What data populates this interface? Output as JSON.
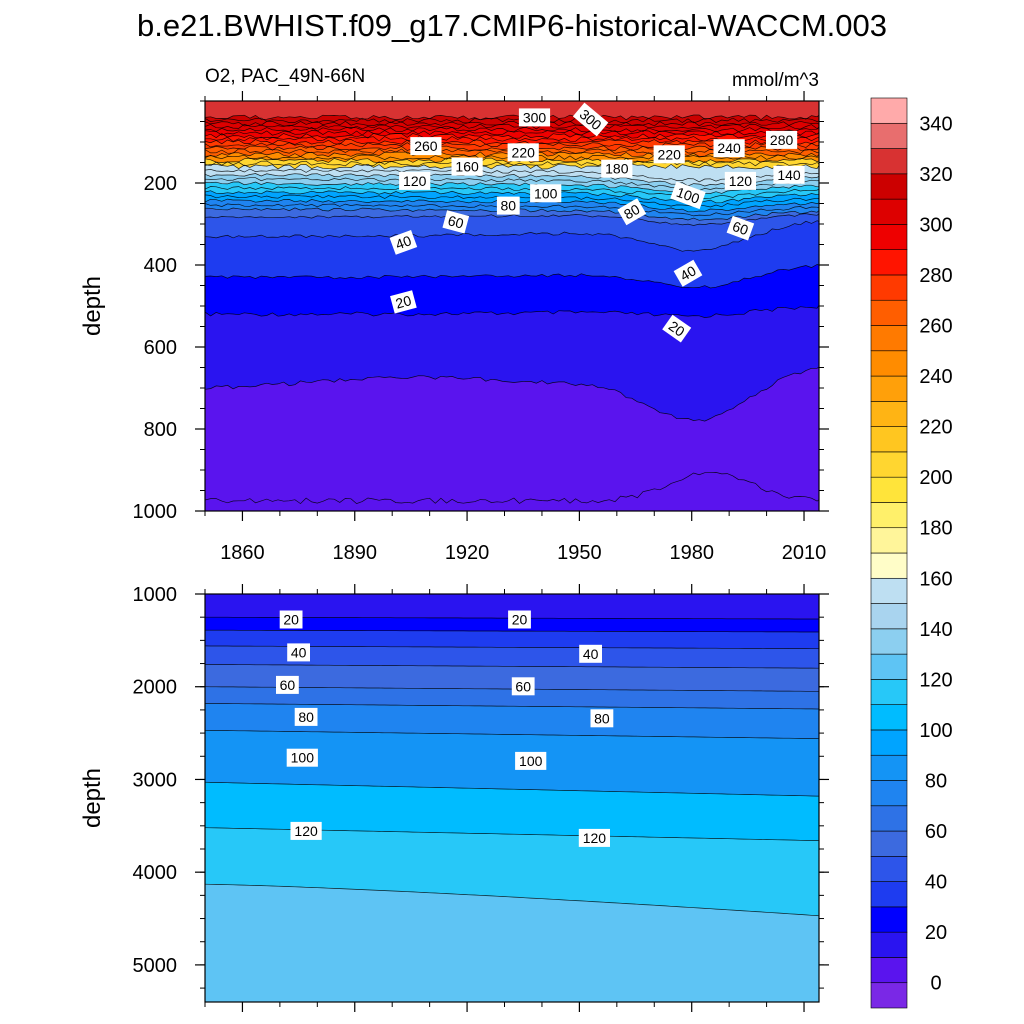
{
  "title": "b.e21.BWHIST.f09_g17.CMIP6-historical-WACCM.003",
  "chart_data": [
    {
      "type": "contour",
      "panel": "upper",
      "subtitle_left": "O2, PAC_49N-66N",
      "subtitle_right": "mmol/m^3",
      "ylabel": "depth",
      "xlim": [
        1850,
        2014
      ],
      "ylim": [
        0,
        1000
      ],
      "y_reversed": true,
      "xticks": [
        1860,
        1890,
        1920,
        1950,
        1980,
        2010
      ],
      "xtick_labels": [
        "1860",
        "1890",
        "1920",
        "1950",
        "1980",
        "2010"
      ],
      "yticks": [
        200,
        400,
        600,
        800,
        1000
      ],
      "ytick_labels": [
        "200",
        "400",
        "600",
        "800",
        "1000"
      ],
      "levels": [
        0,
        20,
        40,
        60,
        80,
        100,
        120,
        140,
        160,
        180,
        200,
        220,
        240,
        260,
        280,
        300,
        320,
        340
      ],
      "line_labels": [
        {
          "text": "300",
          "year": 1938,
          "depth": 40,
          "angle": 0
        },
        {
          "text": "300",
          "year": 1953,
          "depth": 45,
          "angle": 40
        },
        {
          "text": "280",
          "year": 2004,
          "depth": 95,
          "angle": 0
        },
        {
          "text": "260",
          "year": 1909,
          "depth": 110,
          "angle": 0
        },
        {
          "text": "240",
          "year": 1990,
          "depth": 115,
          "angle": 0
        },
        {
          "text": "220",
          "year": 1935,
          "depth": 125,
          "angle": 0
        },
        {
          "text": "220",
          "year": 1974,
          "depth": 130,
          "angle": 0
        },
        {
          "text": "160",
          "year": 1920,
          "depth": 160,
          "angle": 0
        },
        {
          "text": "180",
          "year": 1960,
          "depth": 165,
          "angle": 0
        },
        {
          "text": "140",
          "year": 2006,
          "depth": 180,
          "angle": 0
        },
        {
          "text": "120",
          "year": 1906,
          "depth": 195,
          "angle": 0
        },
        {
          "text": "120",
          "year": 1993,
          "depth": 195,
          "angle": 0
        },
        {
          "text": "100",
          "year": 1941,
          "depth": 225,
          "angle": 0
        },
        {
          "text": "100",
          "year": 1979,
          "depth": 230,
          "angle": 20
        },
        {
          "text": "80",
          "year": 1931,
          "depth": 255,
          "angle": 0
        },
        {
          "text": "80",
          "year": 1964,
          "depth": 270,
          "angle": -30
        },
        {
          "text": "60",
          "year": 1917,
          "depth": 295,
          "angle": 15
        },
        {
          "text": "60",
          "year": 1993,
          "depth": 310,
          "angle": 20
        },
        {
          "text": "40",
          "year": 1903,
          "depth": 345,
          "angle": -20
        },
        {
          "text": "40",
          "year": 1979,
          "depth": 420,
          "angle": -30
        },
        {
          "text": "20",
          "year": 1903,
          "depth": 490,
          "angle": -15
        },
        {
          "text": "20",
          "year": 1976,
          "depth": 555,
          "angle": 35
        }
      ]
    },
    {
      "type": "contour",
      "panel": "lower",
      "ylabel": "depth",
      "xlim": [
        1850,
        2014
      ],
      "ylim": [
        1000,
        5400
      ],
      "y_reversed": true,
      "yticks": [
        1000,
        2000,
        3000,
        4000,
        5000
      ],
      "ytick_labels": [
        "1000",
        "2000",
        "3000",
        "4000",
        "5000"
      ],
      "levels": [
        0,
        20,
        40,
        60,
        80,
        100,
        120,
        140
      ],
      "line_labels": [
        {
          "text": "20",
          "year": 1873,
          "depth": 1275,
          "angle": 0
        },
        {
          "text": "20",
          "year": 1934,
          "depth": 1275,
          "angle": 0
        },
        {
          "text": "40",
          "year": 1875,
          "depth": 1630,
          "angle": 0
        },
        {
          "text": "40",
          "year": 1953,
          "depth": 1645,
          "angle": 0
        },
        {
          "text": "60",
          "year": 1872,
          "depth": 1980,
          "angle": 0
        },
        {
          "text": "60",
          "year": 1935,
          "depth": 1995,
          "angle": 0
        },
        {
          "text": "80",
          "year": 1877,
          "depth": 2325,
          "angle": 0
        },
        {
          "text": "80",
          "year": 1956,
          "depth": 2340,
          "angle": 0
        },
        {
          "text": "100",
          "year": 1876,
          "depth": 2765,
          "angle": 0
        },
        {
          "text": "100",
          "year": 1937,
          "depth": 2800,
          "angle": 0
        },
        {
          "text": "120",
          "year": 1877,
          "depth": 3555,
          "angle": 0
        },
        {
          "text": "120",
          "year": 1954,
          "depth": 3630,
          "angle": 0
        }
      ]
    }
  ],
  "colorbar": {
    "labels": [
      "0",
      "20",
      "40",
      "60",
      "80",
      "100",
      "120",
      "140",
      "160",
      "180",
      "200",
      "220",
      "240",
      "260",
      "280",
      "300",
      "320",
      "340"
    ],
    "colors": [
      "#7a28e6",
      "#5a14ee",
      "#2a14f0",
      "#0000ff",
      "#1e3cf0",
      "#2d55ea",
      "#3c6adf",
      "#2e72e6",
      "#1f84f0",
      "#1494f5",
      "#00a4ff",
      "#00bcff",
      "#27c8f8",
      "#5ec4f4",
      "#8ccff0",
      "#a9d4ef",
      "#bedff2",
      "#fffdc8",
      "#fff59a",
      "#fff06a",
      "#ffe43a",
      "#ffd630",
      "#ffc620",
      "#ffb414",
      "#ffa00a",
      "#ff8c00",
      "#ff7a00",
      "#ff5e00",
      "#ff3a00",
      "#ff1400",
      "#ee0000",
      "#dd0000",
      "#cc0000",
      "#d83232",
      "#e86e6e",
      "#ffaaaa"
    ]
  }
}
